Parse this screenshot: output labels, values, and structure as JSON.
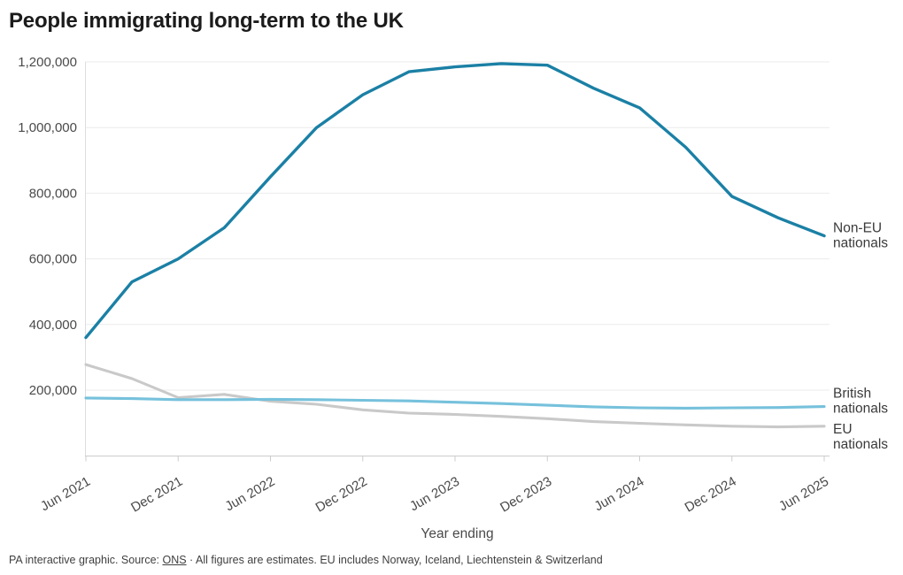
{
  "page": {
    "title": "People immigrating long-term to the UK",
    "footer": {
      "prefix": "PA interactive graphic. Source: ",
      "source_link": "ONS",
      "suffix": " · All figures are estimates. EU includes Norway, Iceland, Liechtenstein & Switzerland"
    }
  },
  "chart_data": {
    "type": "line",
    "title": "People immigrating long-term to the UK",
    "xlabel": "Year ending",
    "ylabel": "",
    "ylim": [
      0,
      1200000
    ],
    "grid": "horizontal",
    "legend_position": "right-end-of-lines",
    "axis_color": "#cccccc",
    "gridline_color": "#ebebeb",
    "tick_label_color": "#4a4a4a",
    "series_label_color": "#3a3a3a",
    "categories": [
      "Jun 2021",
      "Sep 2021",
      "Dec 2021",
      "Mar 2022",
      "Jun 2022",
      "Sep 2022",
      "Dec 2022",
      "Mar 2023",
      "Jun 2023",
      "Sep 2023",
      "Dec 2023",
      "Mar 2024",
      "Jun 2024",
      "Sep 2024",
      "Dec 2024",
      "Mar 2025",
      "Jun 2025"
    ],
    "x_ticks": [
      {
        "label": "Jun 2021",
        "category_index": 0
      },
      {
        "label": "Dec 2021",
        "category_index": 2
      },
      {
        "label": "Jun 2022",
        "category_index": 4
      },
      {
        "label": "Dec 2022",
        "category_index": 6
      },
      {
        "label": "Jun 2023",
        "category_index": 8
      },
      {
        "label": "Dec 2023",
        "category_index": 10
      },
      {
        "label": "Jun 2024",
        "category_index": 12
      },
      {
        "label": "Dec 2024",
        "category_index": 14
      },
      {
        "label": "Jun 2025",
        "category_index": 16
      }
    ],
    "y_ticks": [
      {
        "label": "200,000",
        "value": 200000
      },
      {
        "label": "400,000",
        "value": 400000
      },
      {
        "label": "600,000",
        "value": 600000
      },
      {
        "label": "800,000",
        "value": 800000
      },
      {
        "label": "1,000,000",
        "value": 1000000
      },
      {
        "label": "1,200,000",
        "value": 1200000
      }
    ],
    "series": [
      {
        "name": "Non-EU nationals",
        "slug": "non-eu-nationals",
        "label_lines": [
          "Non-EU",
          "nationals"
        ],
        "color": "#1b80a5",
        "values": [
          360000,
          530000,
          600000,
          695000,
          850000,
          1000000,
          1100000,
          1170000,
          1185000,
          1195000,
          1190000,
          1120000,
          1060000,
          940000,
          790000,
          725000,
          670000
        ]
      },
      {
        "name": "British nationals",
        "slug": "british-nationals",
        "label_lines": [
          "British",
          "nationals"
        ],
        "color": "#76c1dc",
        "values": [
          176000,
          174000,
          171000,
          171000,
          172000,
          171000,
          169000,
          167000,
          163000,
          159000,
          154000,
          149000,
          146000,
          145000,
          146000,
          147000,
          150000
        ]
      },
      {
        "name": "EU nationals",
        "slug": "eu-nationals",
        "label_lines": [
          "EU",
          "nationals"
        ],
        "color": "#c9c9c9",
        "values": [
          278000,
          235000,
          177000,
          187000,
          166000,
          157000,
          140000,
          130000,
          126000,
          120000,
          113000,
          104000,
          99000,
          94000,
          90000,
          88000,
          90000
        ]
      }
    ]
  }
}
